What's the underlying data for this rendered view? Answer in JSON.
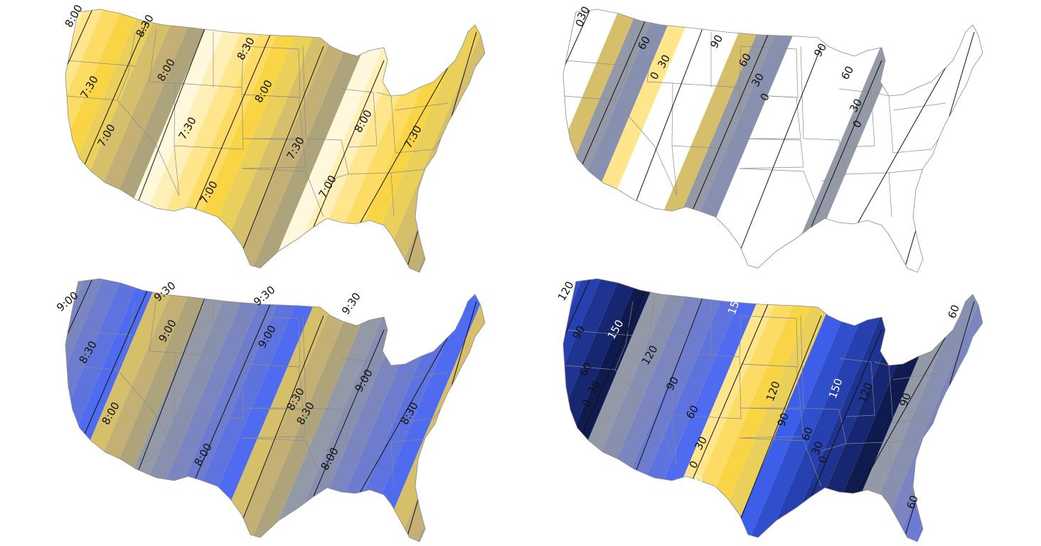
{
  "colors": {
    "yellow": [
      "#fff8dd",
      "#fff0b8",
      "#ffe68c",
      "#fcdc64",
      "#f9d545",
      "#ead05a",
      "#d6bf6a",
      "#c4b074",
      "#aea47c"
    ],
    "grey_blue": [
      "#9499a8",
      "#8890b0",
      "#7b86c0",
      "#6d7ccf",
      "#5f73de",
      "#4f6bf0"
    ],
    "dark_blue": [
      "#3c5ee8",
      "#2f4fcc",
      "#2740b0",
      "#1f3490",
      "#172670",
      "#0f1a4f"
    ],
    "border": "#8a8a8a",
    "line": "#111111"
  },
  "maps": [
    {
      "id": "sunrise-standard",
      "shading": "time",
      "labels": [
        {
          "text": "8:00",
          "color": "dark"
        },
        {
          "text": "8:30",
          "color": "dark"
        },
        {
          "text": "8:00",
          "color": "dark"
        },
        {
          "text": "8:30",
          "color": "dark"
        },
        {
          "text": "7:30",
          "color": "dark"
        },
        {
          "text": "8:00",
          "color": "dark"
        },
        {
          "text": "7:00",
          "color": "dark"
        },
        {
          "text": "7:30",
          "color": "dark"
        },
        {
          "text": "7:30",
          "color": "dark"
        },
        {
          "text": "8:00",
          "color": "dark"
        },
        {
          "text": "7:00",
          "color": "dark"
        },
        {
          "text": "7:30",
          "color": "dark"
        },
        {
          "text": "7:00",
          "color": "dark"
        }
      ]
    },
    {
      "id": "daylight-difference-small",
      "shading": "difference-partial",
      "labels": [
        {
          "text": "0",
          "color": "dark"
        },
        {
          "text": "30",
          "color": "dark"
        },
        {
          "text": "60",
          "color": "dark"
        },
        {
          "text": "0",
          "color": "dark"
        },
        {
          "text": "30",
          "color": "dark"
        },
        {
          "text": "90",
          "color": "dark"
        },
        {
          "text": "60",
          "color": "dark"
        },
        {
          "text": "30",
          "color": "dark"
        },
        {
          "text": "0",
          "color": "dark"
        },
        {
          "text": "90",
          "color": "dark"
        },
        {
          "text": "60",
          "color": "dark"
        },
        {
          "text": "30",
          "color": "dark"
        },
        {
          "text": "0",
          "color": "dark"
        }
      ]
    },
    {
      "id": "sunrise-shifted",
      "shading": "time-blue",
      "labels": [
        {
          "text": "9:00",
          "color": "dark"
        },
        {
          "text": "9:30",
          "color": "dark"
        },
        {
          "text": "9:30",
          "color": "dark"
        },
        {
          "text": "9:30",
          "color": "dark"
        },
        {
          "text": "8:30",
          "color": "dark"
        },
        {
          "text": "9:00",
          "color": "dark"
        },
        {
          "text": "9:00",
          "color": "dark"
        },
        {
          "text": "9:00",
          "color": "dark"
        },
        {
          "text": "8:00",
          "color": "dark"
        },
        {
          "text": "8:30",
          "color": "dark"
        },
        {
          "text": "8:00",
          "color": "dark"
        },
        {
          "text": "8:30",
          "color": "dark"
        },
        {
          "text": "8:30",
          "color": "dark"
        },
        {
          "text": "8:00",
          "color": "dark"
        }
      ]
    },
    {
      "id": "daylight-difference-full",
      "shading": "difference-full",
      "labels": [
        {
          "text": "120",
          "color": "dark"
        },
        {
          "text": "90",
          "color": "dark"
        },
        {
          "text": "60",
          "color": "dark"
        },
        {
          "text": "30",
          "color": "dark"
        },
        {
          "text": "0",
          "color": "dark"
        },
        {
          "text": "150",
          "color": "light"
        },
        {
          "text": "120",
          "color": "dark"
        },
        {
          "text": "90",
          "color": "dark"
        },
        {
          "text": "60",
          "color": "dark"
        },
        {
          "text": "30",
          "color": "dark"
        },
        {
          "text": "0",
          "color": "dark"
        },
        {
          "text": "150",
          "color": "light"
        },
        {
          "text": "150",
          "color": "light"
        },
        {
          "text": "120",
          "color": "dark"
        },
        {
          "text": "90",
          "color": "dark"
        },
        {
          "text": "60",
          "color": "dark"
        },
        {
          "text": "30",
          "color": "dark"
        },
        {
          "text": "0",
          "color": "dark"
        },
        {
          "text": "150",
          "color": "light"
        },
        {
          "text": "120",
          "color": "dark"
        },
        {
          "text": "90",
          "color": "dark"
        },
        {
          "text": "60",
          "color": "dark"
        },
        {
          "text": "60",
          "color": "dark"
        }
      ]
    }
  ]
}
